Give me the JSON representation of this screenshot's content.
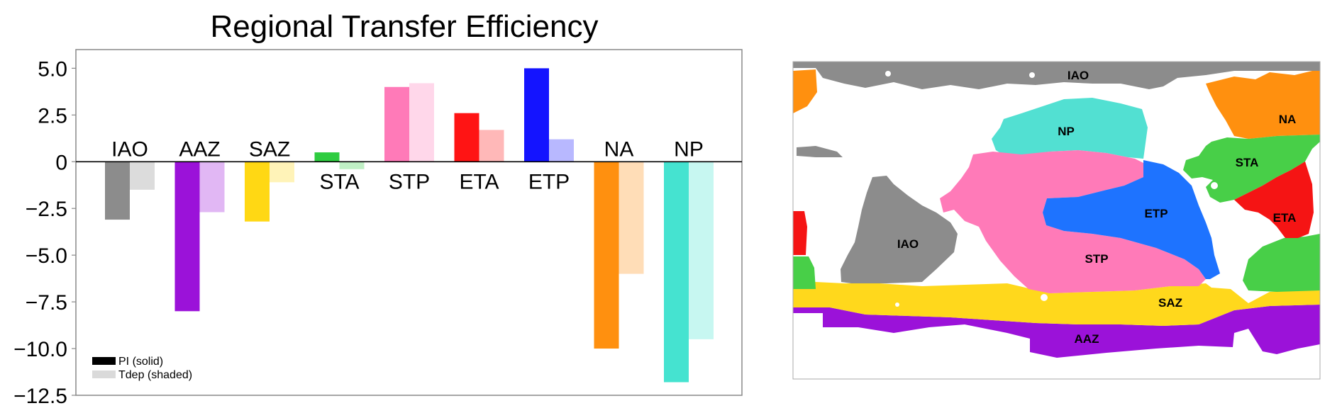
{
  "chart_data": {
    "type": "bar",
    "title": "Regional Transfer Efficiency",
    "xlabel": "",
    "ylabel": "",
    "ylim": [
      -12.5,
      6.0
    ],
    "yticks": [
      "5.0",
      "2.5",
      "0",
      "−2.5",
      "−5.0",
      "−7.5",
      "−10.0",
      "−12.5"
    ],
    "ytick_values": [
      5.0,
      2.5,
      0,
      -2.5,
      -5.0,
      -7.5,
      -10.0,
      -12.5
    ],
    "grid": false,
    "legend_position": "bottom-left",
    "categories": [
      "IAO",
      "AAZ",
      "SAZ",
      "STA",
      "STP",
      "ETA",
      "ETP",
      "NA",
      "NP"
    ],
    "colors": [
      "#8c8c8c",
      "#9b12d9",
      "#ffd814",
      "#2ecc40",
      "#ff7ab8",
      "#ff1414",
      "#1414ff",
      "#ff900f",
      "#45e3d0"
    ],
    "series": [
      {
        "name": "PI (solid)",
        "opacity": 1.0,
        "values": [
          -3.1,
          -8.0,
          -3.2,
          0.5,
          4.0,
          2.6,
          5.0,
          -10.0,
          -11.8
        ]
      },
      {
        "name": "Tdep (shaded)",
        "opacity": 0.3,
        "values": [
          -1.5,
          -2.7,
          -1.1,
          -0.4,
          4.2,
          1.7,
          1.2,
          -6.0,
          -9.5
        ]
      }
    ]
  },
  "map": {
    "regions": [
      {
        "label": "IAO",
        "color": "#8c8c8c"
      },
      {
        "label": "NA",
        "color": "#ff900f"
      },
      {
        "label": "NP",
        "color": "#52e0d2"
      },
      {
        "label": "STA",
        "color": "#48cf48"
      },
      {
        "label": "ETP",
        "color": "#1e73ff"
      },
      {
        "label": "ETA",
        "color": "#f51414"
      },
      {
        "label": "IAO",
        "color": "#8c8c8c"
      },
      {
        "label": "STP",
        "color": "#ff7ab8"
      },
      {
        "label": "SAZ",
        "color": "#ffd81c"
      },
      {
        "label": "AAZ",
        "color": "#9b12d9"
      }
    ]
  }
}
